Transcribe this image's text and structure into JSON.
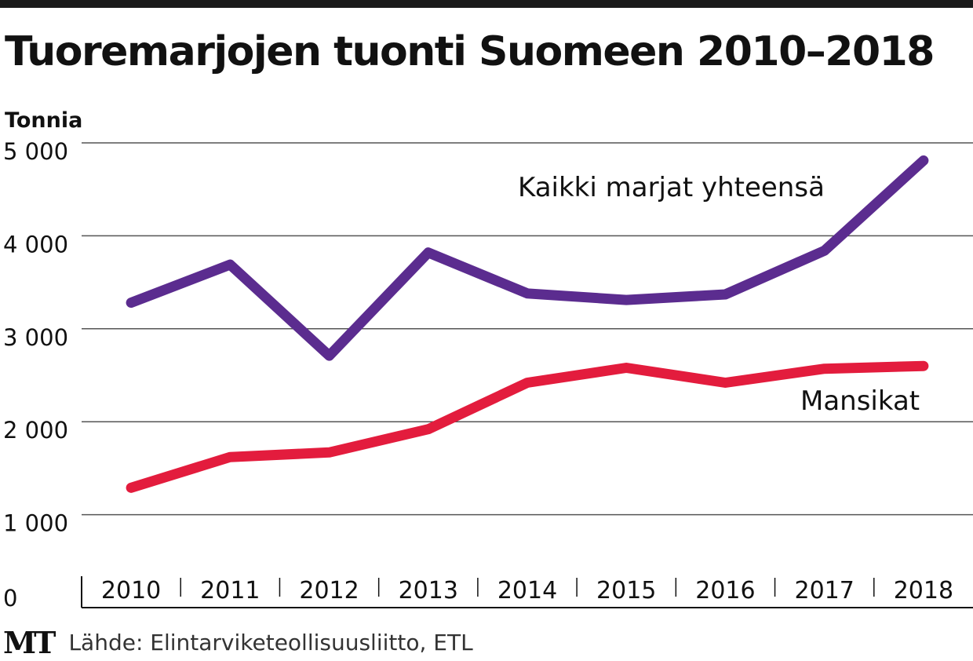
{
  "chart_data": {
    "type": "line",
    "title": "Tuoremarjojen tuonti Suomeen 2010–2018",
    "ylabel": "Tonnia",
    "xlabel": "",
    "categories": [
      "2010",
      "2011",
      "2012",
      "2013",
      "2014",
      "2015",
      "2016",
      "2017",
      "2018"
    ],
    "yticks": [
      0,
      1000,
      2000,
      3000,
      4000,
      5000
    ],
    "ytick_labels": [
      "0",
      "1 000",
      "2 000",
      "3 000",
      "4 000",
      "5 000"
    ],
    "ylim": [
      0,
      5000
    ],
    "grid": true,
    "series": [
      {
        "name": "Kaikki marjat yhteensä",
        "color": "#5b2c8f",
        "values": [
          3280,
          3690,
          2710,
          3820,
          3380,
          3310,
          3370,
          3840,
          4810
        ]
      },
      {
        "name": "Mansikat",
        "color": "#e31c3d",
        "values": [
          1290,
          1620,
          1670,
          1920,
          2420,
          2580,
          2420,
          2570,
          2600
        ]
      }
    ]
  },
  "footer": {
    "logo": "MT",
    "source": "Lähde: Elintarviketeollisuusliitto, ETL"
  },
  "colors": {
    "grid": "#555555",
    "axis": "#111111",
    "text": "#111111"
  }
}
